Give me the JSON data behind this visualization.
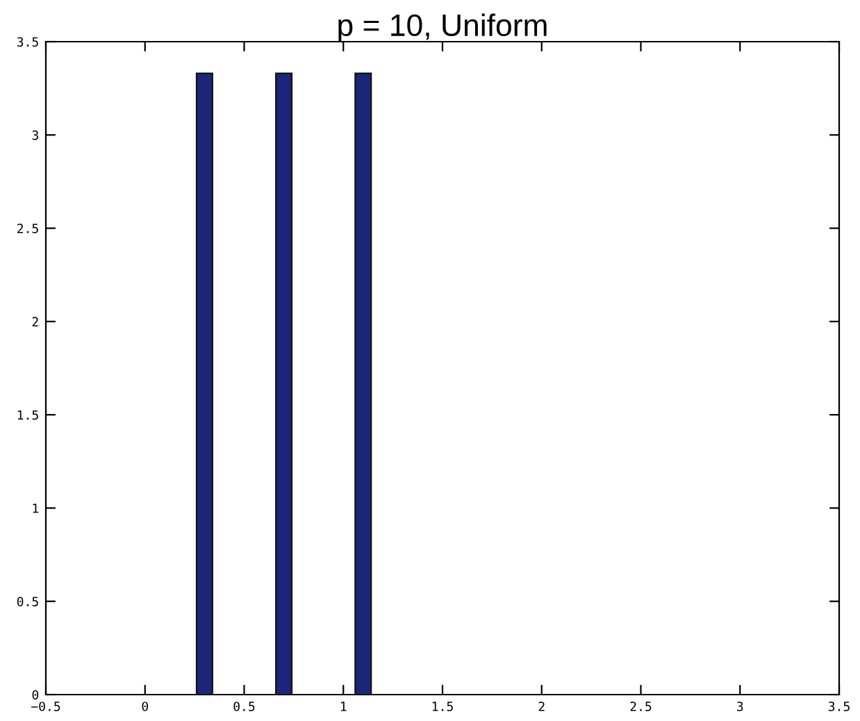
{
  "chart_data": {
    "type": "bar",
    "title": "p = 10, Uniform",
    "x": [
      0.3,
      0.7,
      1.1
    ],
    "values": [
      3.33,
      3.33,
      3.33
    ],
    "color": "#1c2678",
    "xlim": [
      -0.5,
      3.5
    ],
    "xticks": [
      -0.5,
      0,
      0.5,
      1,
      1.5,
      2,
      2.5,
      3,
      3.5
    ],
    "ylim": [
      0,
      3.5
    ],
    "yticks": [
      0,
      0.5,
      1,
      1.5,
      2,
      2.5,
      3,
      3.5
    ],
    "grid": false,
    "legend": false
  }
}
